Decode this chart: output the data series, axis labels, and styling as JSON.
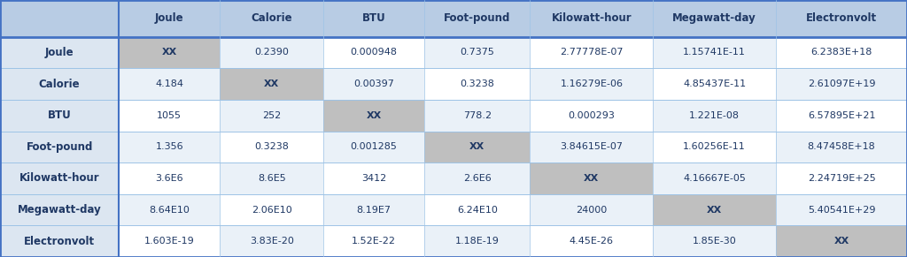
{
  "col_headers": [
    "",
    "Joule",
    "Calorie",
    "BTU",
    "Foot-pound",
    "Kilowatt-hour",
    "Megawatt-day",
    "Electronvolt"
  ],
  "row_headers": [
    "Joule",
    "Calorie",
    "BTU",
    "Foot-pound",
    "Kilowatt-hour",
    "Megawatt-day",
    "Electronvolt"
  ],
  "table_data": [
    [
      "XX",
      "0.2390",
      "0.000948",
      "0.7375",
      "2.77778E-07",
      "1.15741E-11",
      "6.2383E+18"
    ],
    [
      "4.184",
      "XX",
      "0.00397",
      "0.3238",
      "1.16279E-06",
      "4.85437E-11",
      "2.61097E+19"
    ],
    [
      "1055",
      "252",
      "XX",
      "778.2",
      "0.000293",
      "1.221E-08",
      "6.57895E+21"
    ],
    [
      "1.356",
      "0.3238",
      "0.001285",
      "XX",
      "3.84615E-07",
      "1.60256E-11",
      "8.47458E+18"
    ],
    [
      "3.6E6",
      "8.6E5",
      "3412",
      "2.6E6",
      "XX",
      "4.16667E-05",
      "2.24719E+25"
    ],
    [
      "8.64E10",
      "2.06E10",
      "8.19E7",
      "6.24E10",
      "24000",
      "XX",
      "5.40541E+29"
    ],
    [
      "1.603E-19",
      "3.83E-20",
      "1.52E-22",
      "1.18E-19",
      "4.45E-26",
      "1.85E-30",
      "XX"
    ]
  ],
  "header_bg": "#b8cce4",
  "row_header_bg": "#dce6f1",
  "cell_bg_light": "#eaf1f8",
  "cell_bg_white": "#ffffff",
  "diag_bg": "#bfbfbf",
  "header_text_color": "#1f3864",
  "cell_text_color": "#1f3864",
  "border_color_outer": "#4472c4",
  "border_color_inner": "#9dc3e6",
  "font_size_header": 8.5,
  "font_size_cell": 8.0,
  "font_size_row_header": 8.5
}
